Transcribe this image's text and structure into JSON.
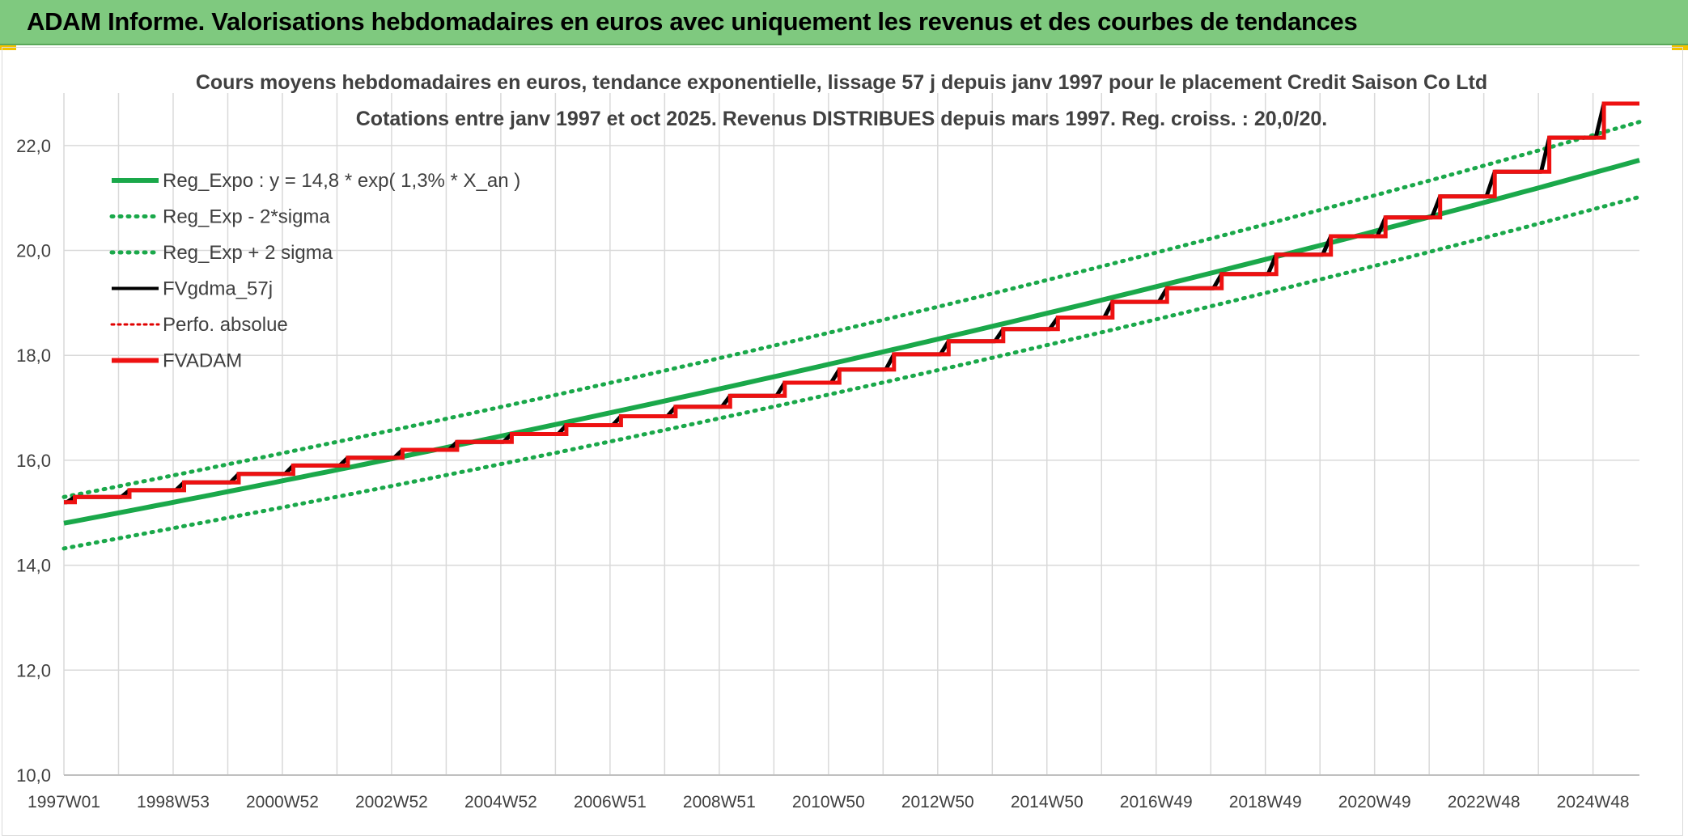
{
  "banner": {
    "title": "ADAM Informe. Valorisations hebdomadaires en euros avec uniquement les revenus et des courbes de tendances"
  },
  "colors": {
    "banner_bg": "#7fc97f",
    "trend": "#1aa84a",
    "fvgdma": "#000000",
    "perfo": "#e00000",
    "fvadam": "#ee1111",
    "grid": "#d9d9d9",
    "text": "#404040"
  },
  "chart_data": {
    "type": "line",
    "title_line1": "Cours moyens hebdomadaires en euros, tendance exponentielle, lissage 57 j depuis janv 1997 pour le placement Credit Saison Co Ltd",
    "title_line2": "Cotations entre janv 1997 et oct 2025. Revenus DISTRIBUES depuis mars 1997. Reg. croiss. : 20,0/20.",
    "x_range": [
      1997.0,
      2025.85
    ],
    "ylim": [
      10,
      23
    ],
    "y_ticks": [
      "10,0",
      "12,0",
      "14,0",
      "16,0",
      "18,0",
      "20,0",
      "22,0"
    ],
    "x_ticks": [
      {
        "label": "1997W01",
        "year": 1997.0
      },
      {
        "label": "1998W53",
        "year": 1999.0
      },
      {
        "label": "2000W52",
        "year": 2001.0
      },
      {
        "label": "2002W52",
        "year": 2003.0
      },
      {
        "label": "2004W52",
        "year": 2005.0
      },
      {
        "label": "2006W51",
        "year": 2007.0
      },
      {
        "label": "2008W51",
        "year": 2009.0
      },
      {
        "label": "2010W50",
        "year": 2011.0
      },
      {
        "label": "2012W50",
        "year": 2013.0
      },
      {
        "label": "2014W50",
        "year": 2015.0
      },
      {
        "label": "2016W49",
        "year": 2017.0
      },
      {
        "label": "2018W49",
        "year": 2019.0
      },
      {
        "label": "2020W49",
        "year": 2021.0
      },
      {
        "label": "2022W48",
        "year": 2023.0
      },
      {
        "label": "2024W48",
        "year": 2025.0
      }
    ],
    "grid": true,
    "legend_position": "top-left",
    "legend": [
      {
        "label": "Reg_Expo : y = 14,8 * exp( 1,3% *  X_an )",
        "series": "reg_expo"
      },
      {
        "label": "Reg_Exp - 2*sigma",
        "series": "reg_minus"
      },
      {
        "label": "Reg_Exp + 2 sigma",
        "series": "reg_plus"
      },
      {
        "label": "FVgdma_57j",
        "series": "fvgdma"
      },
      {
        "label": "Perfo. absolue",
        "series": "perfo"
      },
      {
        "label": "FVADAM",
        "series": "fvadam"
      }
    ],
    "series": [
      {
        "name": "Reg_Expo",
        "key": "reg_expo",
        "x": [
          1997.0,
          2025.85
        ],
        "y": [
          14.8,
          21.72
        ]
      },
      {
        "name": "Reg_Exp - 2*sigma",
        "key": "reg_minus",
        "x": [
          1997.0,
          2025.85
        ],
        "y": [
          14.32,
          21.02
        ]
      },
      {
        "name": "Reg_Exp + 2 sigma",
        "key": "reg_plus",
        "x": [
          1997.0,
          2025.85
        ],
        "y": [
          15.3,
          22.45
        ]
      },
      {
        "name": "FVADAM",
        "key": "fvadam",
        "step_x": [
          1997.0,
          1997.2,
          1998.2,
          1999.2,
          2000.2,
          2001.2,
          2002.2,
          2003.2,
          2004.2,
          2005.2,
          2006.2,
          2007.2,
          2008.2,
          2009.2,
          2010.2,
          2011.2,
          2012.2,
          2013.2,
          2014.2,
          2015.2,
          2016.2,
          2017.2,
          2018.2,
          2019.2,
          2020.2,
          2021.2,
          2022.2,
          2023.2,
          2024.2,
          2025.2,
          2025.85
        ],
        "step_y": [
          15.2,
          15.3,
          15.43,
          15.58,
          15.74,
          15.9,
          16.05,
          16.2,
          16.35,
          16.5,
          16.67,
          16.84,
          17.02,
          17.23,
          17.48,
          17.73,
          18.02,
          18.27,
          18.5,
          18.72,
          19.02,
          19.28,
          19.55,
          19.92,
          20.27,
          20.63,
          21.03,
          21.5,
          22.15,
          22.8,
          22.8
        ]
      }
    ]
  }
}
